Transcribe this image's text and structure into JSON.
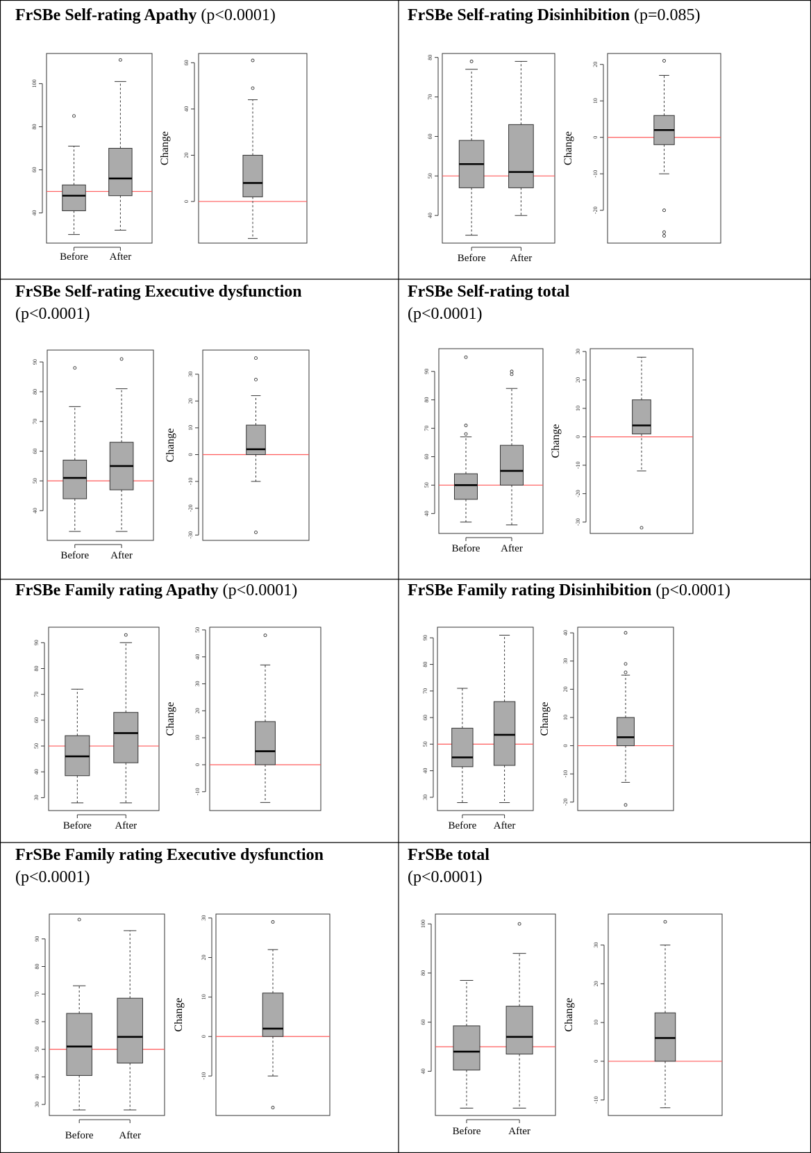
{
  "chart_data": [
    {
      "type": "boxplot",
      "title": "FrSBe Self-rating Apathy",
      "p_value": "(p<0.0001)",
      "title_wrapped": false,
      "reference_line": 50,
      "change_reference_line": 0,
      "before_after": {
        "categories": [
          "Before",
          "After"
        ],
        "yticks": [
          40,
          60,
          80,
          100
        ],
        "ylim": [
          26,
          114
        ],
        "boxes": [
          {
            "whisker_low": 30,
            "q1": 41,
            "median": 48,
            "q3": 53,
            "whisker_high": 71,
            "outliers": [
              85
            ]
          },
          {
            "whisker_low": 32,
            "q1": 48,
            "median": 56,
            "q3": 70,
            "whisker_high": 101,
            "outliers": [
              111
            ]
          }
        ]
      },
      "change": {
        "ylabel": "Change",
        "yticks": [
          0,
          20,
          40,
          60
        ],
        "ylim": [
          -18,
          64
        ],
        "box": {
          "whisker_low": -16,
          "q1": 2,
          "median": 8,
          "q3": 20,
          "whisker_high": 44,
          "outliers": [
            49,
            61
          ]
        }
      }
    },
    {
      "type": "boxplot",
      "title": "FrSBe Self-rating Disinhibition",
      "p_value": "(p=0.085)",
      "title_wrapped": false,
      "reference_line": 50,
      "change_reference_line": 0,
      "before_after": {
        "categories": [
          "Before",
          "After"
        ],
        "yticks": [
          40,
          50,
          60,
          70,
          80
        ],
        "ylim": [
          33,
          81
        ],
        "boxes": [
          {
            "whisker_low": 35,
            "q1": 47,
            "median": 53,
            "q3": 59,
            "whisker_high": 77,
            "outliers": [
              79
            ]
          },
          {
            "whisker_low": 40,
            "q1": 47,
            "median": 51,
            "q3": 63,
            "whisker_high": 79,
            "outliers": []
          }
        ]
      },
      "change": {
        "ylabel": "Change",
        "yticks": [
          -20,
          -10,
          0,
          10,
          20
        ],
        "ylim": [
          -29,
          23
        ],
        "box": {
          "whisker_low": -10,
          "q1": -2,
          "median": 2,
          "q3": 6,
          "whisker_high": 17,
          "outliers": [
            -20,
            -26,
            -27,
            21
          ]
        }
      }
    },
    {
      "type": "boxplot",
      "title": "FrSBe Self-rating Executive dysfunction",
      "p_value": "(p<0.0001)",
      "title_wrapped": true,
      "reference_line": 50,
      "change_reference_line": 0,
      "before_after": {
        "categories": [
          "Before",
          "After"
        ],
        "yticks": [
          40,
          50,
          60,
          70,
          80,
          90
        ],
        "ylim": [
          30,
          94
        ],
        "boxes": [
          {
            "whisker_low": 33,
            "q1": 44,
            "median": 51,
            "q3": 57,
            "whisker_high": 75,
            "outliers": [
              88
            ]
          },
          {
            "whisker_low": 33,
            "q1": 47,
            "median": 55,
            "q3": 63,
            "whisker_high": 81,
            "outliers": [
              91
            ]
          }
        ]
      },
      "change": {
        "ylabel": "Change",
        "yticks": [
          -30,
          -20,
          -10,
          0,
          10,
          20,
          30
        ],
        "ylim": [
          -32,
          39
        ],
        "box": {
          "whisker_low": -10,
          "q1": 0,
          "median": 2,
          "q3": 11,
          "whisker_high": 22,
          "outliers": [
            -29,
            28,
            36
          ]
        }
      }
    },
    {
      "type": "boxplot",
      "title": "FrSBe Self-rating total",
      "p_value": "(p<0.0001)",
      "title_wrapped": true,
      "reference_line": 50,
      "change_reference_line": 0,
      "before_after": {
        "categories": [
          "Before",
          "After"
        ],
        "yticks": [
          40,
          50,
          60,
          70,
          80,
          90
        ],
        "ylim": [
          33,
          98
        ],
        "boxes": [
          {
            "whisker_low": 37,
            "q1": 45,
            "median": 50,
            "q3": 54,
            "whisker_high": 67,
            "outliers": [
              68,
              71,
              95
            ]
          },
          {
            "whisker_low": 36,
            "q1": 50,
            "median": 55,
            "q3": 64,
            "whisker_high": 84,
            "outliers": [
              89,
              90
            ]
          }
        ]
      },
      "change": {
        "ylabel": "Change",
        "yticks": [
          -30,
          -20,
          -10,
          0,
          10,
          20,
          30
        ],
        "ylim": [
          -34,
          31
        ],
        "box": {
          "whisker_low": -12,
          "q1": 1,
          "median": 4,
          "q3": 13,
          "whisker_high": 28,
          "outliers": [
            -32
          ]
        }
      }
    },
    {
      "type": "boxplot",
      "title": "FrSBe Family rating Apathy",
      "p_value": "(p<0.0001)",
      "title_wrapped": false,
      "reference_line": 50,
      "change_reference_line": 0,
      "before_after": {
        "categories": [
          "Before",
          "After"
        ],
        "yticks": [
          30,
          40,
          50,
          60,
          70,
          80,
          90
        ],
        "ylim": [
          25,
          96
        ],
        "boxes": [
          {
            "whisker_low": 28,
            "q1": 38.5,
            "median": 46,
            "q3": 54,
            "whisker_high": 72,
            "outliers": []
          },
          {
            "whisker_low": 28,
            "q1": 43.5,
            "median": 55,
            "q3": 63,
            "whisker_high": 90,
            "outliers": [
              93
            ]
          }
        ]
      },
      "change": {
        "ylabel": "Change",
        "yticks": [
          -10,
          0,
          10,
          20,
          30,
          40,
          50
        ],
        "ylim": [
          -17,
          51
        ],
        "box": {
          "whisker_low": -14,
          "q1": 0,
          "median": 5,
          "q3": 16,
          "whisker_high": 37,
          "outliers": [
            48
          ]
        }
      }
    },
    {
      "type": "boxplot",
      "title": "FrSBe Family rating Disinhibition",
      "p_value": "(p<0.0001)",
      "title_wrapped": false,
      "reference_line": 50,
      "change_reference_line": 0,
      "before_after": {
        "categories": [
          "Before",
          "After"
        ],
        "yticks": [
          30,
          40,
          50,
          60,
          70,
          80,
          90
        ],
        "ylim": [
          25,
          94
        ],
        "boxes": [
          {
            "whisker_low": 28,
            "q1": 41.5,
            "median": 45,
            "q3": 56,
            "whisker_high": 71,
            "outliers": []
          },
          {
            "whisker_low": 28,
            "q1": 42,
            "median": 53.5,
            "q3": 66,
            "whisker_high": 91,
            "outliers": []
          }
        ]
      },
      "change": {
        "ylabel": "Change",
        "yticks": [
          -20,
          -10,
          0,
          10,
          20,
          30,
          40
        ],
        "ylim": [
          -23,
          42
        ],
        "box": {
          "whisker_low": -13,
          "q1": 0,
          "median": 3,
          "q3": 10,
          "whisker_high": 25,
          "outliers": [
            -21,
            26,
            29,
            40
          ]
        }
      }
    },
    {
      "type": "boxplot",
      "title": "FrSBe Family rating Executive dysfunction",
      "p_value": "(p<0.0001)",
      "title_wrapped": true,
      "reference_line": 50,
      "change_reference_line": 0,
      "before_after": {
        "categories": [
          "Before",
          "After"
        ],
        "yticks": [
          30,
          40,
          50,
          60,
          70,
          80,
          90
        ],
        "ylim": [
          26,
          99
        ],
        "boxes": [
          {
            "whisker_low": 28,
            "q1": 40.5,
            "median": 51,
            "q3": 63,
            "whisker_high": 73,
            "outliers": [
              97
            ]
          },
          {
            "whisker_low": 28,
            "q1": 45,
            "median": 54.5,
            "q3": 68.5,
            "whisker_high": 93,
            "outliers": []
          }
        ]
      },
      "change": {
        "ylabel": "Change",
        "yticks": [
          -10,
          0,
          10,
          20,
          30
        ],
        "ylim": [
          -20,
          31
        ],
        "box": {
          "whisker_low": -10,
          "q1": 0,
          "median": 2,
          "q3": 11,
          "whisker_high": 22,
          "outliers": [
            -18,
            29
          ]
        }
      }
    },
    {
      "type": "boxplot",
      "title": "FrSBe total",
      "p_value": "(p<0.0001)",
      "title_wrapped": true,
      "reference_line": 50,
      "change_reference_line": 0,
      "before_after": {
        "categories": [
          "Before",
          "After"
        ],
        "yticks": [
          40,
          60,
          80,
          100
        ],
        "ylim": [
          22,
          104
        ],
        "boxes": [
          {
            "whisker_low": 25,
            "q1": 40.5,
            "median": 48,
            "q3": 58.5,
            "whisker_high": 77,
            "outliers": []
          },
          {
            "whisker_low": 25,
            "q1": 47,
            "median": 54,
            "q3": 66.5,
            "whisker_high": 88,
            "outliers": [
              100
            ]
          }
        ]
      },
      "change": {
        "ylabel": "Change",
        "yticks": [
          -10,
          0,
          10,
          20,
          30
        ],
        "ylim": [
          -14,
          38
        ],
        "box": {
          "whisker_low": -12,
          "q1": 0,
          "median": 6,
          "q3": 12.5,
          "whisker_high": 30,
          "outliers": [
            36
          ]
        }
      }
    }
  ]
}
